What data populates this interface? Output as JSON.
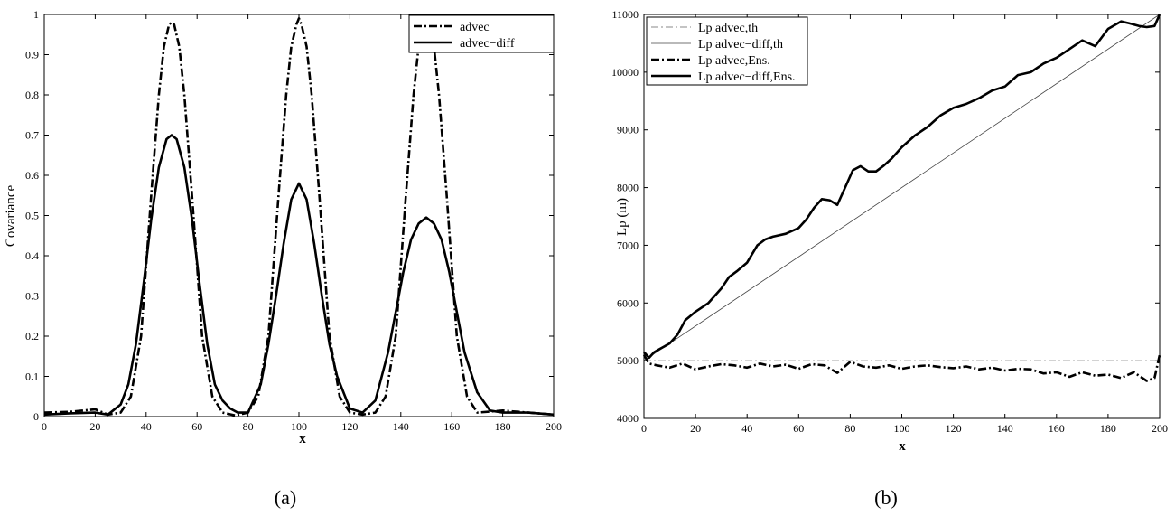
{
  "chart_data": [
    {
      "id": "a",
      "type": "line",
      "panel_label": "(a)",
      "xlabel": "x",
      "ylabel": "Covariance",
      "xlim": [
        0,
        200
      ],
      "ylim": [
        0,
        1
      ],
      "xticks": [
        0,
        20,
        40,
        60,
        80,
        100,
        120,
        140,
        160,
        180,
        200
      ],
      "yticks": [
        0,
        0.1,
        0.2,
        0.3,
        0.4,
        0.5,
        0.6,
        0.7,
        0.8,
        0.9,
        1
      ],
      "ytick_labels": [
        "0",
        "0.1",
        "0.2",
        "0.3",
        "0.4",
        "0.5",
        "0.6",
        "0.7",
        "0.8",
        "0.9",
        "1"
      ],
      "grid": false,
      "legend_position": "top-right",
      "series": [
        {
          "name": "advec",
          "style": "dashdot-thick",
          "x": [
            0,
            10,
            20,
            25,
            30,
            34,
            38,
            42,
            45,
            47,
            49,
            50,
            51,
            53,
            55,
            58,
            62,
            66,
            70,
            75,
            80,
            84,
            88,
            92,
            95,
            97,
            99,
            100,
            101,
            103,
            105,
            108,
            112,
            116,
            120,
            125,
            130,
            134,
            138,
            142,
            145,
            147,
            149,
            150,
            151,
            153,
            155,
            158,
            162,
            166,
            170,
            180,
            190,
            200
          ],
          "values": [
            0.01,
            0.012,
            0.018,
            0.005,
            0.01,
            0.05,
            0.2,
            0.55,
            0.8,
            0.92,
            0.975,
            0.98,
            0.975,
            0.92,
            0.8,
            0.55,
            0.2,
            0.05,
            0.01,
            0.003,
            0.01,
            0.05,
            0.2,
            0.55,
            0.8,
            0.92,
            0.975,
            0.99,
            0.975,
            0.92,
            0.8,
            0.55,
            0.2,
            0.05,
            0.01,
            0.005,
            0.01,
            0.05,
            0.2,
            0.55,
            0.8,
            0.92,
            0.97,
            0.98,
            0.97,
            0.92,
            0.8,
            0.55,
            0.2,
            0.05,
            0.01,
            0.015,
            0.01,
            0.005
          ]
        },
        {
          "name": "advec−diff",
          "style": "solid-thick",
          "x": [
            0,
            10,
            20,
            25,
            30,
            33,
            36,
            39,
            42,
            45,
            48,
            50,
            52,
            55,
            58,
            61,
            64,
            67,
            70,
            73,
            76,
            80,
            85,
            88,
            91,
            94,
            97,
            100,
            103,
            106,
            109,
            112,
            115,
            120,
            125,
            130,
            135,
            138,
            141,
            144,
            147,
            150,
            153,
            156,
            159,
            162,
            165,
            170,
            175,
            180,
            190,
            200
          ],
          "values": [
            0.005,
            0.008,
            0.01,
            0.005,
            0.03,
            0.08,
            0.18,
            0.33,
            0.49,
            0.62,
            0.69,
            0.7,
            0.69,
            0.62,
            0.49,
            0.33,
            0.18,
            0.08,
            0.04,
            0.02,
            0.01,
            0.01,
            0.08,
            0.18,
            0.3,
            0.43,
            0.54,
            0.58,
            0.54,
            0.43,
            0.3,
            0.18,
            0.1,
            0.02,
            0.01,
            0.04,
            0.16,
            0.26,
            0.36,
            0.44,
            0.48,
            0.495,
            0.48,
            0.44,
            0.36,
            0.26,
            0.16,
            0.06,
            0.015,
            0.01,
            0.01,
            0.005
          ]
        }
      ]
    },
    {
      "id": "b",
      "type": "line",
      "panel_label": "(b)",
      "xlabel": "x",
      "ylabel": "Lp (m)",
      "xlim": [
        0,
        200
      ],
      "ylim": [
        4000,
        11000
      ],
      "xticks": [
        0,
        20,
        40,
        60,
        80,
        100,
        120,
        140,
        160,
        180,
        200
      ],
      "yticks": [
        4000,
        5000,
        6000,
        7000,
        8000,
        9000,
        10000,
        11000
      ],
      "ytick_labels": [
        "4000",
        "5000",
        "6000",
        "7000",
        "8000",
        "9000",
        "10000",
        "11000"
      ],
      "grid": false,
      "legend_position": "top-left",
      "series": [
        {
          "name": "Lp advec,th",
          "style": "dashdot-thin-gray",
          "x": [
            0,
            200
          ],
          "values": [
            5000,
            5000
          ]
        },
        {
          "name": "Lp advec−diff,th",
          "style": "solid-thin",
          "x": [
            0,
            200
          ],
          "values": [
            5000,
            11000
          ]
        },
        {
          "name": "Lp advec,Ens.",
          "style": "dashdot-thick",
          "x": [
            0,
            2,
            5,
            10,
            15,
            20,
            25,
            30,
            35,
            40,
            45,
            50,
            55,
            60,
            65,
            70,
            75,
            80,
            85,
            90,
            95,
            100,
            105,
            110,
            115,
            120,
            125,
            130,
            135,
            140,
            145,
            150,
            155,
            160,
            165,
            170,
            175,
            180,
            185,
            190,
            195,
            198,
            200
          ],
          "values": [
            5100,
            4950,
            4920,
            4880,
            4950,
            4850,
            4900,
            4940,
            4920,
            4880,
            4950,
            4900,
            4930,
            4860,
            4940,
            4920,
            4790,
            4980,
            4900,
            4880,
            4920,
            4860,
            4900,
            4920,
            4890,
            4870,
            4900,
            4850,
            4880,
            4830,
            4860,
            4850,
            4780,
            4800,
            4720,
            4800,
            4740,
            4760,
            4700,
            4800,
            4650,
            4700,
            5100
          ]
        },
        {
          "name": "Lp advec−diff,Ens.",
          "style": "solid-thick",
          "x": [
            0,
            2,
            4,
            6,
            8,
            10,
            13,
            16,
            20,
            25,
            30,
            33,
            36,
            40,
            44,
            47,
            50,
            55,
            60,
            63,
            66,
            69,
            72,
            75,
            78,
            81,
            84,
            87,
            90,
            93,
            96,
            100,
            105,
            110,
            115,
            120,
            125,
            130,
            135,
            140,
            145,
            150,
            155,
            160,
            165,
            170,
            175,
            180,
            185,
            188,
            192,
            195,
            198,
            200
          ],
          "values": [
            5150,
            5050,
            5150,
            5200,
            5250,
            5300,
            5450,
            5700,
            5850,
            6000,
            6250,
            6450,
            6550,
            6700,
            7000,
            7100,
            7150,
            7200,
            7300,
            7450,
            7650,
            7800,
            7780,
            7700,
            8000,
            8300,
            8370,
            8280,
            8280,
            8380,
            8500,
            8700,
            8900,
            9050,
            9250,
            9380,
            9450,
            9550,
            9680,
            9750,
            9950,
            10000,
            10150,
            10250,
            10400,
            10550,
            10450,
            10750,
            10880,
            10850,
            10800,
            10780,
            10800,
            11000
          ]
        }
      ]
    }
  ]
}
